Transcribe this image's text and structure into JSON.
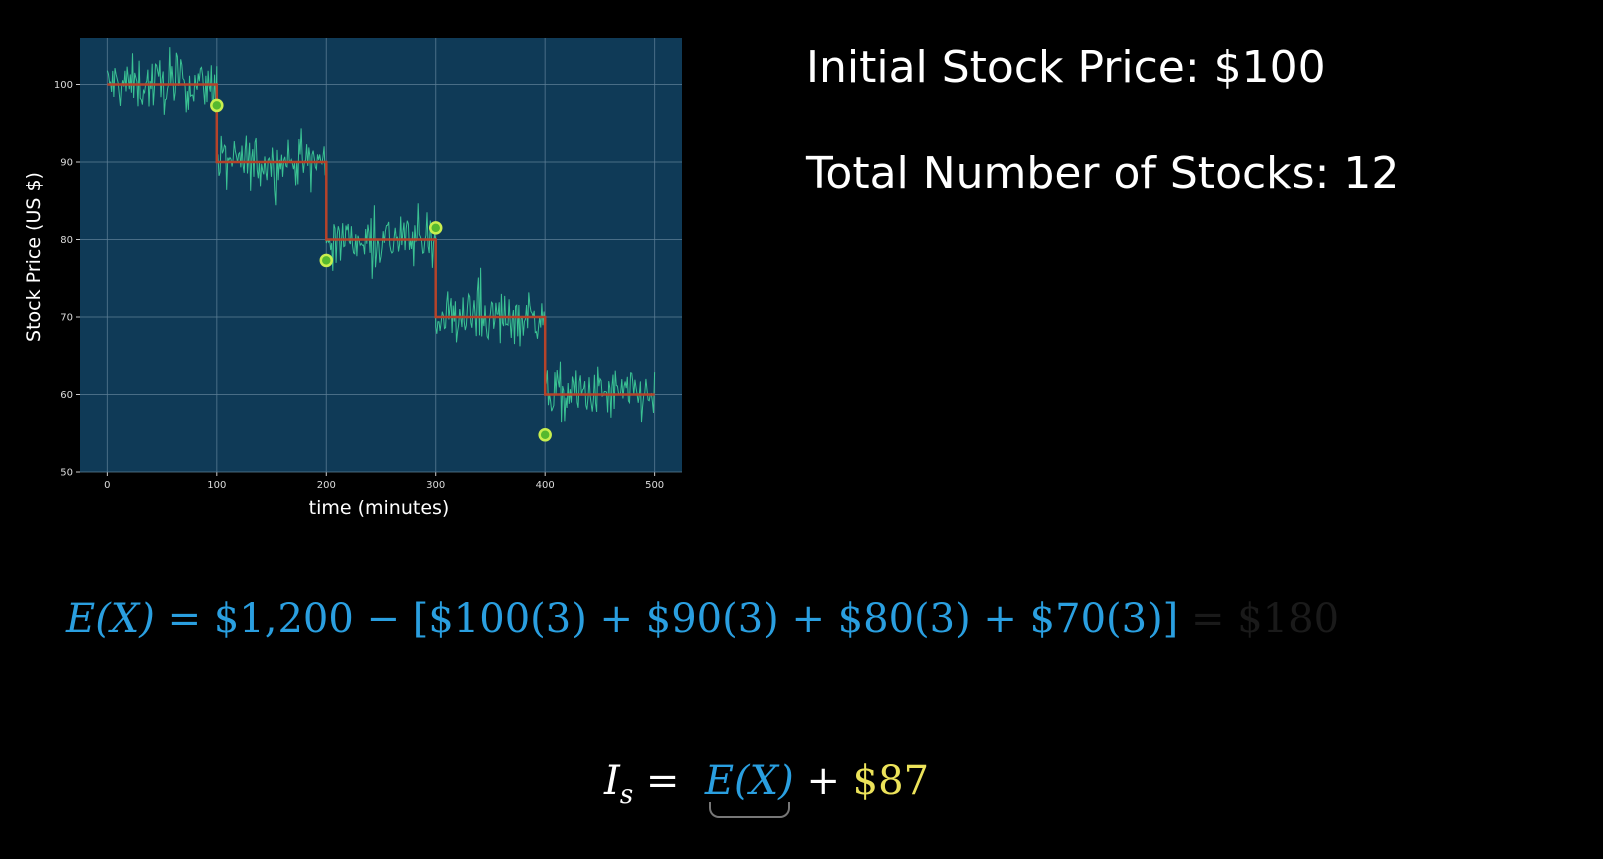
{
  "chart_data": {
    "type": "line",
    "xlabel": "time (minutes)",
    "ylabel": "Stock Price (US $)",
    "xlim": [
      -25,
      525
    ],
    "ylim": [
      50,
      106
    ],
    "xticks": [
      "0",
      "100",
      "200",
      "300",
      "400",
      "500"
    ],
    "yticks": [
      "50",
      "60",
      "70",
      "80",
      "90",
      "100"
    ],
    "grid": true,
    "background_color": "#0f3a57",
    "series": [
      {
        "kind": "step",
        "color": "#b5432a",
        "x": [
          0,
          100,
          100,
          200,
          200,
          300,
          300,
          400,
          400,
          500
        ],
        "y": [
          100,
          100,
          90,
          90,
          80,
          80,
          70,
          70,
          60,
          60
        ]
      },
      {
        "kind": "noisy-price",
        "color": "#3fd19a",
        "noise_amplitude": 3.5,
        "segments": [
          {
            "x_start": 0,
            "x_end": 100,
            "mean": 100
          },
          {
            "x_start": 100,
            "x_end": 200,
            "mean": 90
          },
          {
            "x_start": 200,
            "x_end": 300,
            "mean": 80
          },
          {
            "x_start": 300,
            "x_end": 400,
            "mean": 70
          },
          {
            "x_start": 400,
            "x_end": 500,
            "mean": 60
          }
        ]
      },
      {
        "kind": "markers",
        "color": "#c9ef4e",
        "x": [
          100,
          200,
          300,
          400
        ],
        "y": [
          97.3,
          77.3,
          81.5,
          54.8
        ]
      }
    ]
  },
  "info": {
    "initial_price": "Initial Stock Price: $100",
    "total_stocks": "Total Number of Stocks: 12"
  },
  "formula_ex": {
    "lhs": "E(X)",
    "eq": "=",
    "body": "$1,200 − [$100(3) + $90(3) + $80(3) + $70(3)]",
    "result": "= $180"
  },
  "formula_is": {
    "lhs": "I",
    "sub": "s",
    "eq": "=",
    "term": "E(X)",
    "plus": "+",
    "value": "$87"
  },
  "colors": {
    "formula_blue": "#2a9fe0",
    "highlight_yellow": "#ece35a"
  }
}
